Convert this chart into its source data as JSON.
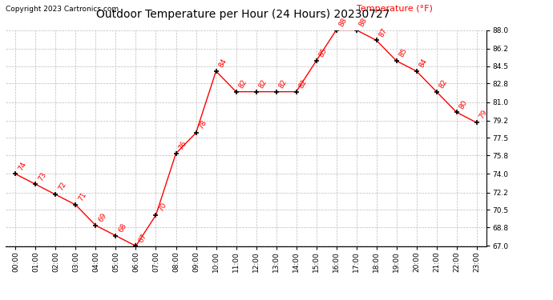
{
  "title": "Outdoor Temperature per Hour (24 Hours) 20230727",
  "copyright_text": "Copyright 2023 Cartronics.com",
  "legend_label": "Temperature (°F)",
  "hours": [
    0,
    1,
    2,
    3,
    4,
    5,
    6,
    7,
    8,
    9,
    10,
    11,
    12,
    13,
    14,
    15,
    16,
    17,
    18,
    19,
    20,
    21,
    22,
    23
  ],
  "temps": [
    74,
    73,
    72,
    71,
    69,
    68,
    67,
    70,
    76,
    78,
    84,
    82,
    82,
    82,
    82,
    85,
    88,
    88,
    87,
    85,
    84,
    82,
    80,
    79
  ],
  "hour_labels": [
    "00:00",
    "01:00",
    "02:00",
    "03:00",
    "04:00",
    "05:00",
    "06:00",
    "07:00",
    "08:00",
    "09:00",
    "10:00",
    "11:00",
    "12:00",
    "13:00",
    "14:00",
    "15:00",
    "16:00",
    "17:00",
    "18:00",
    "19:00",
    "20:00",
    "21:00",
    "22:00",
    "23:00"
  ],
  "ylim": [
    67.0,
    88.0
  ],
  "yticks": [
    67.0,
    68.8,
    70.5,
    72.2,
    74.0,
    75.8,
    77.5,
    79.2,
    81.0,
    82.8,
    84.5,
    86.2,
    88.0
  ],
  "line_color": "red",
  "marker_color": "black",
  "label_color": "red",
  "title_color": "black",
  "bg_color": "white",
  "grid_color": "#bbbbbb",
  "title_fontsize": 10,
  "label_fontsize": 6.5,
  "tick_fontsize": 6.5,
  "copyright_fontsize": 6.5,
  "legend_fontsize": 8
}
